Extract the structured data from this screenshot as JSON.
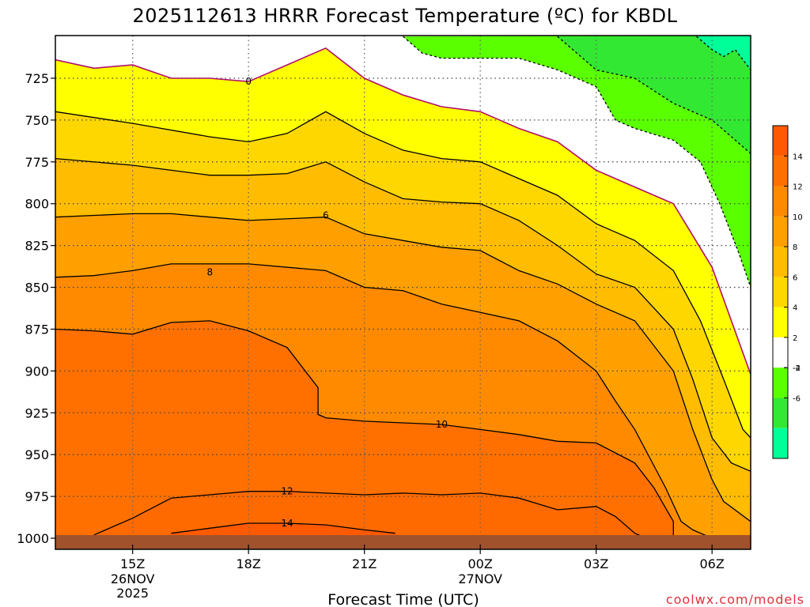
{
  "chart_data": {
    "type": "contour",
    "title": "2025112613 HRRR Forecast Temperature (ºC) for KBDL",
    "xlabel": "Forecast Time (UTC)",
    "ylabel": "",
    "credit": "coolwx.com/models",
    "y_axis": {
      "unit": "hPa",
      "inverted": true,
      "ticks": [
        725,
        750,
        775,
        800,
        825,
        850,
        875,
        900,
        925,
        950,
        975,
        1000
      ],
      "ylim": [
        1000,
        700
      ]
    },
    "x_axis": {
      "ticks": [
        {
          "hour": 15,
          "label": "15Z",
          "sub1": "26NOV",
          "sub2": "2025"
        },
        {
          "hour": 18,
          "label": "18Z",
          "sub1": "",
          "sub2": ""
        },
        {
          "hour": 21,
          "label": "21Z",
          "sub1": "",
          "sub2": ""
        },
        {
          "hour": 24,
          "label": "00Z",
          "sub1": "27NOV",
          "sub2": ""
        },
        {
          "hour": 27,
          "label": "03Z",
          "sub1": "",
          "sub2": ""
        },
        {
          "hour": 30,
          "label": "06Z",
          "sub1": "",
          "sub2": ""
        }
      ],
      "xlim": [
        13,
        31
      ]
    },
    "grid": true,
    "colorbar": {
      "placement": "right",
      "ticks": [
        14,
        12,
        10,
        8,
        6,
        4,
        2,
        -2,
        -4,
        -6
      ],
      "levels": [
        {
          "min": 14,
          "max": 16,
          "color": "#ff5a00"
        },
        {
          "min": 12,
          "max": 14,
          "color": "#ff7000"
        },
        {
          "min": 10,
          "max": 12,
          "color": "#ff8a00"
        },
        {
          "min": 8,
          "max": 10,
          "color": "#ffa000"
        },
        {
          "min": 6,
          "max": 8,
          "color": "#ffbc00"
        },
        {
          "min": 4,
          "max": 6,
          "color": "#ffd700"
        },
        {
          "min": 2,
          "max": 4,
          "color": "#ffff00"
        },
        {
          "min": -2,
          "max": 2,
          "color": "#ffffff"
        },
        {
          "min": -4,
          "max": -2,
          "color": "#5aff00"
        },
        {
          "min": -6,
          "max": -4,
          "color": "#33e833"
        },
        {
          "min": -8,
          "max": -6,
          "color": "#00ff99"
        }
      ]
    },
    "ground_color": "#a0522d",
    "isotherms": [
      {
        "value": 0,
        "label": "0",
        "label_at": [
          18,
          727
        ],
        "color": "#b0106e",
        "dashed": false,
        "points": [
          [
            13,
            714
          ],
          [
            14,
            719
          ],
          [
            15,
            717
          ],
          [
            16,
            725
          ],
          [
            17,
            725
          ],
          [
            18,
            727
          ],
          [
            19,
            717
          ],
          [
            20,
            707
          ],
          [
            21,
            725
          ],
          [
            22,
            735
          ],
          [
            23,
            742
          ],
          [
            24,
            745
          ],
          [
            25,
            755
          ],
          [
            26,
            763
          ],
          [
            27,
            780
          ],
          [
            28,
            790
          ],
          [
            29,
            800
          ],
          [
            30,
            838
          ],
          [
            30.5,
            870
          ],
          [
            31,
            902
          ]
        ]
      },
      {
        "value": 2,
        "label": "",
        "label_at": null,
        "color": "#000000",
        "dashed": false,
        "points": [
          [
            13,
            745
          ],
          [
            15,
            752
          ],
          [
            17,
            760
          ],
          [
            18,
            763
          ],
          [
            19,
            758
          ],
          [
            20,
            745
          ],
          [
            21,
            758
          ],
          [
            22,
            768
          ],
          [
            23,
            773
          ],
          [
            24,
            775
          ],
          [
            25,
            785
          ],
          [
            26,
            795
          ],
          [
            27,
            812
          ],
          [
            28,
            822
          ],
          [
            29,
            840
          ],
          [
            29.7,
            870
          ],
          [
            30.3,
            905
          ],
          [
            30.8,
            935
          ],
          [
            31,
            940
          ]
        ]
      },
      {
        "value": 4,
        "label": "",
        "label_at": null,
        "color": "#000000",
        "dashed": false,
        "points": [
          [
            13,
            773
          ],
          [
            15,
            777
          ],
          [
            16,
            780
          ],
          [
            17,
            783
          ],
          [
            18,
            783
          ],
          [
            19,
            782
          ],
          [
            20,
            775
          ],
          [
            21,
            787
          ],
          [
            22,
            797
          ],
          [
            23,
            799
          ],
          [
            24,
            800
          ],
          [
            25,
            810
          ],
          [
            26,
            825
          ],
          [
            27,
            842
          ],
          [
            28,
            850
          ],
          [
            29,
            875
          ],
          [
            29.5,
            905
          ],
          [
            30,
            940
          ],
          [
            30.5,
            955
          ],
          [
            31,
            960
          ]
        ]
      },
      {
        "value": 6,
        "label": "6",
        "label_at": [
          20,
          807
        ],
        "color": "#000000",
        "dashed": false,
        "points": [
          [
            13,
            808
          ],
          [
            15,
            806
          ],
          [
            16,
            806
          ],
          [
            17,
            808
          ],
          [
            18,
            810
          ],
          [
            20,
            808
          ],
          [
            21,
            818
          ],
          [
            22,
            822
          ],
          [
            23,
            826
          ],
          [
            24,
            828
          ],
          [
            25,
            840
          ],
          [
            26,
            848
          ],
          [
            27,
            860
          ],
          [
            28,
            870
          ],
          [
            29,
            900
          ],
          [
            29.5,
            935
          ],
          [
            30,
            965
          ],
          [
            30.3,
            978
          ],
          [
            31,
            990
          ]
        ]
      },
      {
        "value": 8,
        "label": "8",
        "label_at": [
          17,
          841
        ],
        "color": "#000000",
        "dashed": false,
        "points": [
          [
            13,
            844
          ],
          [
            14,
            843
          ],
          [
            15,
            840
          ],
          [
            16,
            836
          ],
          [
            17,
            836
          ],
          [
            18,
            836
          ],
          [
            20,
            840
          ],
          [
            21,
            850
          ],
          [
            22,
            852
          ],
          [
            23,
            860
          ],
          [
            24,
            865
          ],
          [
            25,
            870
          ],
          [
            26,
            882
          ],
          [
            27,
            900
          ],
          [
            27.5,
            918
          ],
          [
            28,
            935
          ],
          [
            28.8,
            970
          ],
          [
            29.2,
            990
          ],
          [
            29.5,
            995
          ],
          [
            30,
            1000
          ]
        ]
      },
      {
        "value": 10,
        "label": "10",
        "label_at": [
          23,
          932
        ],
        "color": "#000000",
        "dashed": false,
        "points": [
          [
            13,
            875
          ],
          [
            14,
            876
          ],
          [
            15,
            878
          ],
          [
            16,
            871
          ],
          [
            17,
            870
          ],
          [
            18,
            876
          ],
          [
            19,
            886
          ],
          [
            19.8,
            910
          ],
          [
            19.8,
            926
          ],
          [
            20,
            928
          ],
          [
            21,
            930
          ],
          [
            22,
            931
          ],
          [
            23,
            932
          ],
          [
            24,
            935
          ],
          [
            25,
            938
          ],
          [
            26,
            942
          ],
          [
            27,
            943
          ],
          [
            28,
            955
          ],
          [
            28.5,
            970
          ],
          [
            29,
            990
          ],
          [
            29,
            1000
          ]
        ]
      },
      {
        "value": 12,
        "label": "12",
        "label_at": [
          19,
          972
        ],
        "color": "#000000",
        "dashed": false,
        "points": [
          [
            14,
            998
          ],
          [
            15,
            988
          ],
          [
            16,
            976
          ],
          [
            17,
            974
          ],
          [
            18,
            972
          ],
          [
            19,
            972
          ],
          [
            20,
            973
          ],
          [
            21,
            974
          ],
          [
            22,
            973
          ],
          [
            23,
            974
          ],
          [
            24,
            973
          ],
          [
            25,
            976
          ],
          [
            26,
            983
          ],
          [
            27,
            981
          ],
          [
            27.5,
            987
          ],
          [
            28,
            997
          ],
          [
            28.2,
            999
          ]
        ]
      },
      {
        "value": 14,
        "label": "14",
        "label_at": [
          19,
          991
        ],
        "color": "#000000",
        "dashed": false,
        "points": [
          [
            16,
            997
          ],
          [
            17,
            994
          ],
          [
            18,
            991
          ],
          [
            19,
            991
          ],
          [
            20,
            992
          ],
          [
            21,
            995
          ],
          [
            21.8,
            997
          ]
        ]
      },
      {
        "value": -2,
        "label": "",
        "label_at": null,
        "color": "#000000",
        "dashed": true,
        "points": [
          [
            22,
            700
          ],
          [
            22.5,
            710
          ],
          [
            23,
            713
          ],
          [
            25,
            713
          ],
          [
            26,
            720
          ],
          [
            27,
            730
          ],
          [
            27.5,
            750
          ],
          [
            28,
            755
          ],
          [
            29,
            762
          ],
          [
            29.7,
            775
          ],
          [
            30.2,
            800
          ],
          [
            30.7,
            830
          ],
          [
            31,
            850
          ]
        ]
      },
      {
        "value": -4,
        "label": "",
        "label_at": null,
        "color": "#000000",
        "dashed": true,
        "points": [
          [
            26,
            700
          ],
          [
            27,
            720
          ],
          [
            28,
            725
          ],
          [
            29,
            740
          ],
          [
            30,
            750
          ],
          [
            31,
            770
          ]
        ]
      },
      {
        "value": -6,
        "label": "",
        "label_at": null,
        "color": "#000000",
        "dashed": true,
        "points": [
          [
            29.6,
            700
          ],
          [
            30,
            708
          ],
          [
            30.3,
            712
          ],
          [
            30.6,
            708
          ],
          [
            31,
            720
          ]
        ]
      }
    ]
  }
}
